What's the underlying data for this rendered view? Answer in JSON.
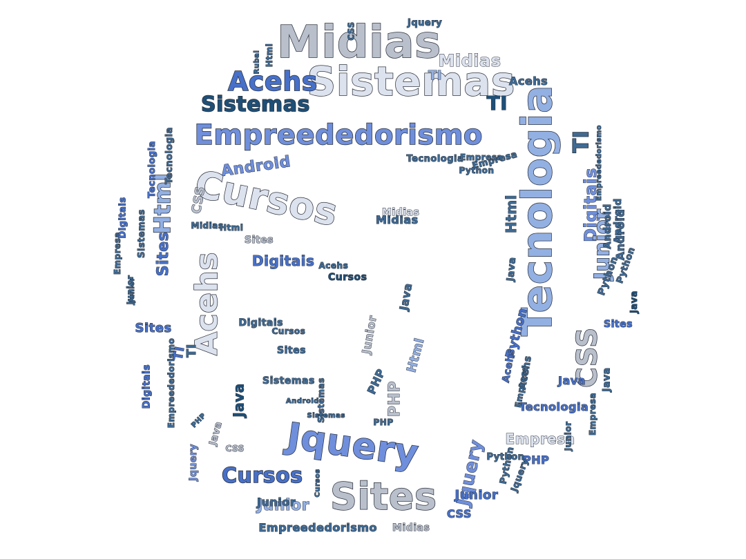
{
  "palette": {
    "pale": "#dde3ee",
    "silver": "#b9c0cc",
    "sky": "#93b0e3",
    "cornflower": "#6f8fdc",
    "royal": "#4770c8",
    "steel": "#3f6a93",
    "navy": "#1e4f77"
  },
  "words": [
    "Midias",
    "Sistemas",
    "Acehs",
    "Sistemas",
    "Empreededorismo",
    "TI",
    "Midias",
    "TI",
    "Jquery",
    "CSS",
    "Acehs",
    "Html",
    "Rubal",
    "Tecnologia",
    "TI",
    "Android",
    "Cursos",
    "CSS",
    "Html",
    "Midias",
    "Tecnologia",
    "Digitais",
    "Junior",
    "Android",
    "Acehs",
    "Sites",
    "Digitais",
    "Acehs",
    "Cursos",
    "Html",
    "Sites",
    "Midias",
    "Digitais",
    "Sites",
    "TI",
    "Sites",
    "Java",
    "PHP",
    "CSS",
    "Jquery",
    "Cursos",
    "Sites",
    "Junior",
    "Jquery",
    "Junior",
    "Java",
    "Html",
    "PHP",
    "Java",
    "Tecnologia",
    "Python",
    "Empresa",
    "PHP",
    "Python",
    "Acehs",
    "Java",
    "Python",
    "Empreededorismo",
    "Empresa",
    "Junior",
    "Jquery",
    "Junior",
    "Java",
    "Tecnologia",
    "CSS",
    "Sistemas",
    "Midias",
    "Java",
    "Android",
    "PHP",
    "Empresa",
    "Cursos",
    "Sistemas",
    "Junior",
    "Empresa",
    "Junior",
    "Sistemas",
    "Digitais",
    "Empreededorismo",
    "Tecnologia",
    "Python",
    "Acehs",
    "CSS",
    "Html",
    "PHP",
    "Android",
    "Cursos",
    "Jquery",
    "Empreededorismo",
    "Midias",
    "Sistemas",
    "Empresa",
    "Python",
    "Java",
    "Sites",
    "Python",
    "Digitais",
    "Android",
    "Empresa",
    "TI",
    "Junior"
  ]
}
